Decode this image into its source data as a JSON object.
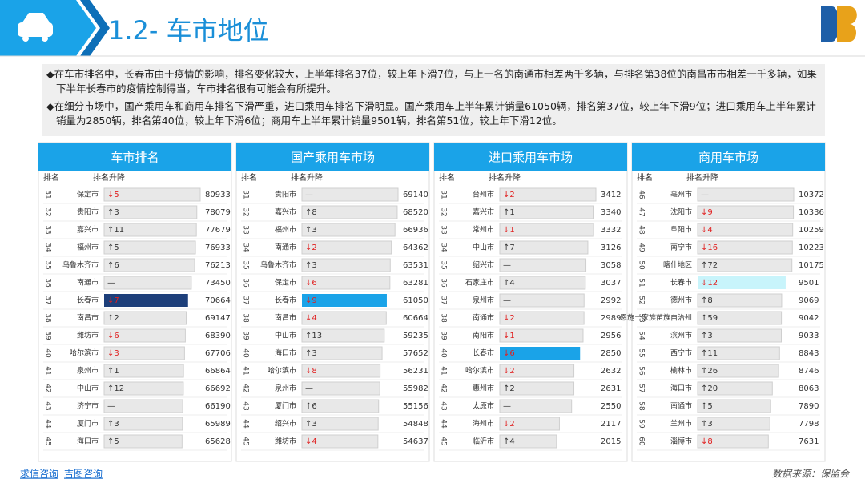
{
  "header": {
    "title": "1.2- 车市地位"
  },
  "bullets": [
    "在车市排名中，长春市由于疫情的影响，排名变化较大，上半年排名37位，较上年下滑7位，与上一名的南通市相差两千多辆，与排名第38位的南昌市市相差一千多辆，如果下半年长春市的疫情控制得当，车市排名很有可能会有所提升。",
    "在细分市场中，国产乘用车和商用车排名下滑严重，进口乘用车排名下滑明显。国产乘用车上半年累计销量61050辆，排名第37位，较上年下滑9位；进口乘用车上半年累计销量为2850辆，排名第40位，较上年下滑6位；商用车上半年累计销量9501辆，排名第51位，较上年下滑12位。"
  ],
  "panels": [
    {
      "title": "车市排名",
      "col_rank": "排名",
      "col_change": "排名升降",
      "highlight_row": 6,
      "highlight_color": "#1d3f7a",
      "rows": [
        [
          31,
          "保定市",
          "↓5",
          80933
        ],
        [
          32,
          "贵阳市",
          "↑3",
          78079
        ],
        [
          33,
          "嘉兴市",
          "↑11",
          77679
        ],
        [
          34,
          "福州市",
          "↑5",
          76933
        ],
        [
          35,
          "乌鲁木齐市",
          "↑6",
          76213
        ],
        [
          36,
          "南通市",
          "—",
          73450
        ],
        [
          37,
          "长春市",
          "↓7",
          70664
        ],
        [
          38,
          "南昌市",
          "↑2",
          69147
        ],
        [
          39,
          "潍坊市",
          "↓6",
          68390
        ],
        [
          40,
          "哈尔滨市",
          "↓3",
          67706
        ],
        [
          41,
          "泉州市",
          "↑1",
          66864
        ],
        [
          42,
          "中山市",
          "↑12",
          66692
        ],
        [
          43,
          "济宁市",
          "—",
          66190
        ],
        [
          44,
          "厦门市",
          "↑3",
          65989
        ],
        [
          45,
          "海口市",
          "↑5",
          65628
        ]
      ]
    },
    {
      "title": "国产乘用车市场",
      "col_rank": "排名",
      "col_change": "排名升降",
      "highlight_row": 6,
      "highlight_color": "#1aa3e8",
      "rows": [
        [
          31,
          "贵阳市",
          "—",
          69140
        ],
        [
          32,
          "嘉兴市",
          "↑8",
          68520
        ],
        [
          33,
          "福州市",
          "↑3",
          66936
        ],
        [
          34,
          "南通市",
          "↓2",
          64362
        ],
        [
          35,
          "乌鲁木齐市",
          "↑3",
          63531
        ],
        [
          36,
          "保定市",
          "↓6",
          63281
        ],
        [
          37,
          "长春市",
          "↓9",
          61050
        ],
        [
          38,
          "南昌市",
          "↓4",
          60664
        ],
        [
          39,
          "中山市",
          "↑13",
          59235
        ],
        [
          40,
          "海口市",
          "↑3",
          57652
        ],
        [
          41,
          "哈尔滨市",
          "↓8",
          56231
        ],
        [
          42,
          "泉州市",
          "—",
          55982
        ],
        [
          43,
          "厦门市",
          "↑6",
          55156
        ],
        [
          44,
          "绍兴市",
          "↑3",
          54848
        ],
        [
          45,
          "潍坊市",
          "↓4",
          54637
        ]
      ]
    },
    {
      "title": "进口乘用车市场",
      "col_rank": "排名",
      "col_change": "排名升降",
      "highlight_row": 9,
      "highlight_color": "#1aa3e8",
      "rows": [
        [
          31,
          "台州市",
          "↓2",
          3412
        ],
        [
          32,
          "嘉兴市",
          "↑1",
          3340
        ],
        [
          33,
          "常州市",
          "↓1",
          3332
        ],
        [
          34,
          "中山市",
          "↑7",
          3126
        ],
        [
          35,
          "绍兴市",
          "—",
          3058
        ],
        [
          36,
          "石家庄市",
          "↑4",
          3037
        ],
        [
          37,
          "泉州市",
          "—",
          2992
        ],
        [
          38,
          "南通市",
          "↓2",
          2989
        ],
        [
          39,
          "南阳市",
          "↓1",
          2956
        ],
        [
          40,
          "长春市",
          "↓6",
          2850
        ],
        [
          41,
          "哈尔滨市",
          "↓2",
          2632
        ],
        [
          42,
          "惠州市",
          "↑2",
          2631
        ],
        [
          43,
          "太原市",
          "—",
          2550
        ],
        [
          44,
          "海州市",
          "↓2",
          2117
        ],
        [
          45,
          "临沂市",
          "↑4",
          2015
        ]
      ]
    },
    {
      "title": "商用车市场",
      "col_rank": "排名",
      "col_change": "排名升降",
      "highlight_row": 5,
      "highlight_color": "#c8f4fb",
      "rows": [
        [
          46,
          "亳州市",
          "—",
          10372
        ],
        [
          47,
          "沈阳市",
          "↓9",
          10336
        ],
        [
          48,
          "阜阳市",
          "↓4",
          10259
        ],
        [
          49,
          "南宁市",
          "↓16",
          10223
        ],
        [
          50,
          "喀什地区",
          "↑72",
          10175
        ],
        [
          51,
          "长春市",
          "↓12",
          9501
        ],
        [
          52,
          "德州市",
          "↑8",
          9069
        ],
        [
          53,
          "恩施土家族苗族自治州",
          "↑59",
          9042
        ],
        [
          54,
          "滨州市",
          "↑3",
          9033
        ],
        [
          55,
          "西宁市",
          "↑11",
          8843
        ],
        [
          56,
          "榆林市",
          "↑26",
          8746
        ],
        [
          57,
          "海口市",
          "↑20",
          8063
        ],
        [
          58,
          "南通市",
          "↑5",
          7890
        ],
        [
          59,
          "兰州市",
          "↑3",
          7798
        ],
        [
          60,
          "淄博市",
          "↓8",
          7631
        ]
      ]
    }
  ],
  "footer": {
    "links": [
      "求信咨询",
      "吉图咨询"
    ],
    "source": "数据来源：保监会"
  }
}
